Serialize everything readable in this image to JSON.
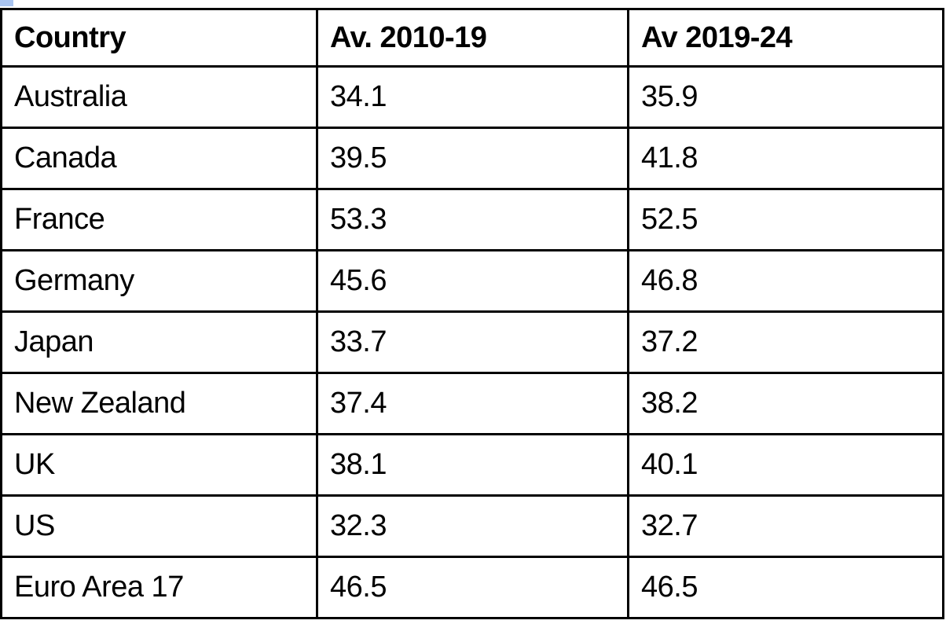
{
  "colors": {
    "table_border": "#000000",
    "background": "#ffffff",
    "corner_marker": "#a9c4f0",
    "text": "#000000"
  },
  "table": {
    "headers": [
      "Country",
      "Av. 2010-19",
      "Av 2019-24"
    ],
    "rows": [
      [
        "Australia",
        "34.1",
        "35.9"
      ],
      [
        "Canada",
        "39.5",
        "41.8"
      ],
      [
        "France",
        "53.3",
        "52.5"
      ],
      [
        "Germany",
        "45.6",
        "46.8"
      ],
      [
        "Japan",
        "33.7",
        "37.2"
      ],
      [
        "New Zealand",
        "37.4",
        "38.2"
      ],
      [
        "UK",
        "38.1",
        "40.1"
      ],
      [
        "US",
        "32.3",
        "32.7"
      ],
      [
        "Euro Area 17",
        "46.5",
        "46.5"
      ]
    ]
  },
  "chart_data": {
    "type": "table",
    "title": "",
    "columns": [
      "Country",
      "Av. 2010-19",
      "Av 2019-24"
    ],
    "categories": [
      "Australia",
      "Canada",
      "France",
      "Germany",
      "Japan",
      "New Zealand",
      "UK",
      "US",
      "Euro Area 17"
    ],
    "series": [
      {
        "name": "Av. 2010-19",
        "values": [
          34.1,
          39.5,
          53.3,
          45.6,
          33.7,
          37.4,
          38.1,
          32.3,
          46.5
        ]
      },
      {
        "name": "Av 2019-24",
        "values": [
          35.9,
          41.8,
          52.5,
          46.8,
          37.2,
          38.2,
          40.1,
          32.7,
          46.5
        ]
      }
    ]
  }
}
